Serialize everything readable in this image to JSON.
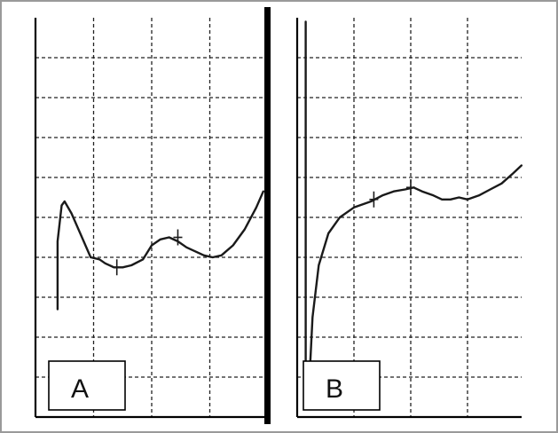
{
  "colors": {
    "trace": "#1a1a1a",
    "grid": "#222222",
    "frame": "#000000",
    "divider": "#000000",
    "background": "#ffffff",
    "outer_border": "#9a9a9a"
  },
  "chart_data": [
    {
      "type": "line",
      "panel_label": "A",
      "grid": true,
      "grid_style": "dashed",
      "grid_columns": 4,
      "grid_rows": 10,
      "xlim": [
        0,
        4
      ],
      "ylim": [
        0,
        10
      ],
      "series": [
        {
          "points": [
            [
              0.38,
              2.7
            ],
            [
              0.38,
              4.4
            ],
            [
              0.45,
              5.3
            ],
            [
              0.5,
              5.4
            ],
            [
              0.62,
              5.1
            ],
            [
              0.8,
              4.5
            ],
            [
              0.95,
              4.0
            ],
            [
              1.1,
              3.95
            ],
            [
              1.2,
              3.85
            ],
            [
              1.35,
              3.75
            ],
            [
              1.5,
              3.75
            ],
            [
              1.65,
              3.8
            ],
            [
              1.85,
              3.95
            ],
            [
              2.0,
              4.3
            ],
            [
              2.15,
              4.45
            ],
            [
              2.3,
              4.5
            ],
            [
              2.45,
              4.4
            ],
            [
              2.6,
              4.25
            ],
            [
              2.75,
              4.15
            ],
            [
              2.9,
              4.05
            ],
            [
              3.05,
              4.0
            ],
            [
              3.2,
              4.05
            ],
            [
              3.4,
              4.3
            ],
            [
              3.6,
              4.7
            ],
            [
              3.8,
              5.25
            ],
            [
              3.92,
              5.65
            ]
          ]
        }
      ],
      "markers": [
        [
          1.4,
          3.75
        ],
        [
          2.45,
          4.5
        ]
      ]
    },
    {
      "type": "line",
      "panel_label": "B",
      "grid": true,
      "grid_style": "dashed",
      "grid_columns": 4,
      "grid_rows": 10,
      "xlim": [
        0,
        4
      ],
      "ylim": [
        0,
        10
      ],
      "series": [
        {
          "points": [
            [
              0.15,
              9.9
            ],
            [
              0.15,
              0.2
            ],
            [
              0.2,
              0.5
            ],
            [
              0.27,
              2.5
            ],
            [
              0.38,
              3.8
            ],
            [
              0.55,
              4.6
            ],
            [
              0.75,
              5.0
            ],
            [
              1.0,
              5.25
            ],
            [
              1.3,
              5.4
            ],
            [
              1.5,
              5.55
            ],
            [
              1.7,
              5.65
            ],
            [
              1.9,
              5.7
            ],
            [
              2.05,
              5.75
            ],
            [
              2.2,
              5.65
            ],
            [
              2.4,
              5.55
            ],
            [
              2.55,
              5.45
            ],
            [
              2.7,
              5.45
            ],
            [
              2.85,
              5.5
            ],
            [
              3.0,
              5.45
            ],
            [
              3.2,
              5.55
            ],
            [
              3.4,
              5.7
            ],
            [
              3.6,
              5.85
            ],
            [
              3.8,
              6.1
            ],
            [
              3.95,
              6.3
            ]
          ]
        }
      ],
      "markers": [
        [
          1.35,
          5.45
        ],
        [
          2.0,
          5.75
        ]
      ]
    }
  ]
}
